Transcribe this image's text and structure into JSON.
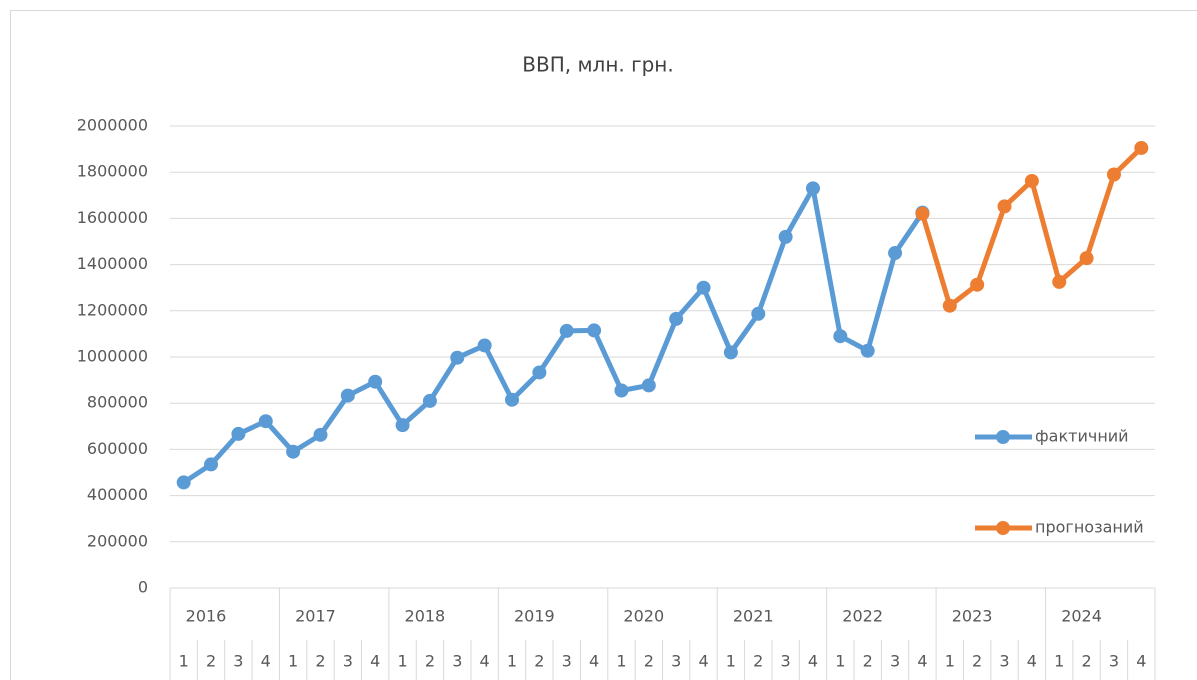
{
  "chart_data": {
    "type": "line",
    "title": "ВВП, млн. грн.",
    "categories": [
      "1",
      "2",
      "3",
      "4",
      "1",
      "2",
      "3",
      "4",
      "1",
      "2",
      "3",
      "4",
      "1",
      "2",
      "3",
      "4",
      "1",
      "2",
      "3",
      "4",
      "1",
      "2",
      "3",
      "4",
      "1",
      "2",
      "3",
      "4",
      "1",
      "2",
      "3",
      "4",
      "1",
      "2",
      "3",
      "4"
    ],
    "category_groups": [
      "2016",
      "2017",
      "2018",
      "2019",
      "2020",
      "2021",
      "2022",
      "2023",
      "2024"
    ],
    "series": [
      {
        "name": "фактичний",
        "color": "#5b9bd5",
        "values": [
          457000,
          535000,
          667000,
          722000,
          590000,
          663000,
          833000,
          893000,
          705000,
          810000,
          997000,
          1050000,
          815000,
          933000,
          1113000,
          1115000,
          855000,
          877000,
          1165000,
          1300000,
          1020000,
          1187000,
          1520000,
          1730000,
          1090000,
          1027000,
          1450000,
          1625000,
          null,
          null,
          null,
          null,
          null,
          null,
          null,
          null
        ]
      },
      {
        "name": "прогнозаний",
        "color": "#ed7d31",
        "values": [
          null,
          null,
          null,
          null,
          null,
          null,
          null,
          null,
          null,
          null,
          null,
          null,
          null,
          null,
          null,
          null,
          null,
          null,
          null,
          null,
          null,
          null,
          null,
          null,
          null,
          null,
          null,
          1620000,
          1222000,
          1313000,
          1652000,
          1762000,
          1325000,
          1428000,
          1790000,
          1905000
        ]
      }
    ],
    "ylim": [
      0,
      2000000
    ],
    "yticks": [
      0,
      200000,
      400000,
      600000,
      800000,
      1000000,
      1200000,
      1400000,
      1600000,
      1800000,
      2000000
    ],
    "grid": true,
    "legend": "right"
  }
}
